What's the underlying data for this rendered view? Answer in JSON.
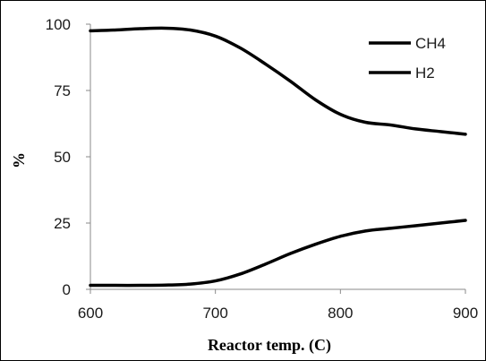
{
  "chart_data": {
    "type": "line",
    "title": "",
    "xlabel": "Reactor temp. (C)",
    "ylabel": "%",
    "xlim": [
      600,
      900
    ],
    "ylim": [
      0,
      100
    ],
    "xticks": [
      600,
      700,
      800,
      900
    ],
    "yticks": [
      0,
      25,
      50,
      75,
      100
    ],
    "grid": false,
    "legend_position": "top-right",
    "line_color": "#000000",
    "series": [
      {
        "name": "CH4",
        "x": [
          600,
          620,
          640,
          660,
          680,
          700,
          720,
          740,
          760,
          780,
          800,
          820,
          840,
          860,
          880,
          900
        ],
        "y": [
          97.5,
          97.8,
          98.3,
          98.5,
          97.8,
          95.5,
          91,
          85,
          78.5,
          71.5,
          66,
          63,
          62,
          60.5,
          59.5,
          58.5
        ]
      },
      {
        "name": "H2",
        "x": [
          600,
          620,
          640,
          660,
          680,
          700,
          720,
          740,
          760,
          780,
          800,
          820,
          840,
          860,
          880,
          900
        ],
        "y": [
          1.5,
          1.5,
          1.5,
          1.6,
          2.0,
          3.2,
          5.8,
          9.5,
          13.5,
          17,
          20,
          22,
          23,
          24,
          25,
          26
        ]
      }
    ]
  }
}
